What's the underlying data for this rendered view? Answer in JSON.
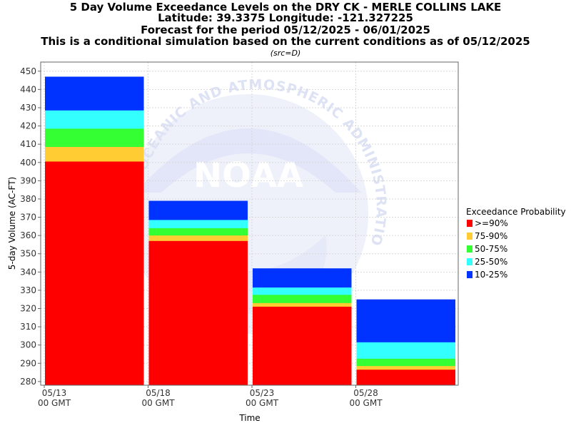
{
  "chart_data": {
    "type": "bar",
    "stacked": true,
    "title_lines": [
      "5 Day Volume Exceedance Levels on the DRY CK - MERLE COLLINS LAKE",
      "Latitude: 39.3375 Longitude: -121.327225",
      "Forecast for the period 05/12/2025 - 06/01/2025",
      "This is a conditional simulation based on the current conditions as of 05/12/2025"
    ],
    "subtitle": "(src=D)",
    "xlabel": "Time",
    "ylabel": "5-day Volume (AC-FT)",
    "ylim": [
      278,
      455
    ],
    "yticks": [
      280,
      290,
      300,
      310,
      320,
      330,
      340,
      350,
      360,
      370,
      380,
      390,
      400,
      410,
      420,
      430,
      440,
      450
    ],
    "xlim": [
      "05/13",
      "06/01"
    ],
    "xticks": [
      {
        "date": "05/13",
        "label1": "05/13",
        "label2": "00 GMT"
      },
      {
        "date": "05/18",
        "label1": "05/18",
        "label2": "00 GMT"
      },
      {
        "date": "05/23",
        "label1": "05/23",
        "label2": "00 GMT"
      },
      {
        "date": "05/28",
        "label1": "05/28",
        "label2": "00 GMT"
      }
    ],
    "grid": true,
    "legend_position": "right",
    "legend_title": "Exceedance Probability",
    "series": [
      {
        "name": ">=90%",
        "color": "#ff0000"
      },
      {
        "name": "75-90%",
        "color": "#ffcc33"
      },
      {
        "name": "50-75%",
        "color": "#33ff33"
      },
      {
        "name": "25-50%",
        "color": "#33ffff"
      },
      {
        "name": "10-25%",
        "color": "#0033ff"
      }
    ],
    "periods": [
      {
        "start": "05/13",
        "end": "05/18",
        "levels": [
          400.5,
          408.5,
          418.5,
          428.5,
          447
        ]
      },
      {
        "start": "05/18",
        "end": "05/23",
        "levels": [
          357,
          360,
          364,
          368.5,
          379
        ]
      },
      {
        "start": "05/23",
        "end": "05/28",
        "levels": [
          321,
          323,
          327.5,
          331.5,
          342
        ]
      },
      {
        "start": "05/28",
        "end": "06/01",
        "levels": [
          286.5,
          288.5,
          292.5,
          301.5,
          325
        ]
      }
    ],
    "watermark": "NOAA",
    "watermark_arc": "OCEANIC AND ATMOSPHERIC ADMINISTRATION"
  }
}
